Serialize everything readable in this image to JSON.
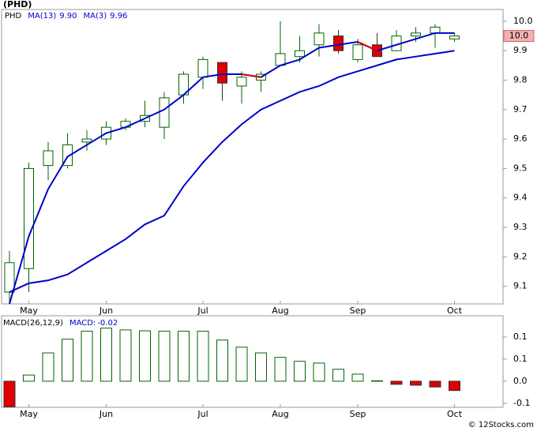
{
  "chart_data": [
    {
      "type": "candlestick",
      "title": "(PHD)",
      "ticker": "PHD",
      "ticker_color": "#006400",
      "categories": [
        null,
        "May",
        null,
        null,
        null,
        "Jun",
        null,
        null,
        null,
        null,
        "Jul",
        null,
        null,
        null,
        "Aug",
        null,
        null,
        null,
        "Sep",
        null,
        null,
        null,
        null,
        "Oct"
      ],
      "open": [
        9.08,
        9.16,
        9.51,
        9.51,
        9.59,
        9.6,
        9.64,
        9.66,
        9.64,
        9.75,
        9.81,
        9.86,
        9.78,
        9.8,
        9.85,
        9.88,
        9.92,
        9.95,
        9.87,
        9.92,
        9.9,
        9.95,
        9.96,
        9.94
      ],
      "high": [
        9.22,
        9.52,
        9.59,
        9.62,
        9.63,
        9.66,
        9.67,
        9.73,
        9.76,
        9.83,
        9.88,
        9.86,
        9.83,
        9.83,
        10.0,
        9.95,
        9.99,
        9.97,
        9.94,
        9.96,
        9.97,
        9.98,
        9.99,
        9.96
      ],
      "low": [
        9.04,
        9.08,
        9.46,
        9.5,
        9.56,
        9.58,
        9.63,
        9.64,
        9.6,
        9.72,
        9.77,
        9.73,
        9.72,
        9.76,
        9.85,
        9.86,
        9.88,
        9.89,
        9.86,
        9.88,
        9.9,
        9.93,
        9.91,
        9.93
      ],
      "close": [
        9.18,
        9.5,
        9.56,
        9.58,
        9.6,
        9.64,
        9.66,
        9.68,
        9.74,
        9.82,
        9.87,
        9.79,
        9.81,
        9.82,
        9.89,
        9.9,
        9.96,
        9.9,
        9.92,
        9.88,
        9.95,
        9.96,
        9.98,
        9.95
      ],
      "up_color": "#006400",
      "down_color": "#e00000",
      "series": [
        {
          "name": "MA(13)",
          "last": {
            "value": 9.9,
            "label": "9.90"
          },
          "color": "#0000cc",
          "values": [
            9.08,
            9.11,
            9.12,
            9.14,
            9.18,
            9.22,
            9.26,
            9.31,
            9.34,
            9.44,
            9.52,
            9.59,
            9.65,
            9.7,
            9.73,
            9.76,
            9.78,
            9.81,
            9.83,
            9.85,
            9.87,
            9.88,
            9.89,
            9.9
          ]
        },
        {
          "name": "MA(3)",
          "last": {
            "value": 9.96,
            "label": "9.96"
          },
          "color": "#0000cc",
          "falling_color": "#e00000",
          "values": [
            9.04,
            9.27,
            9.43,
            9.54,
            9.58,
            9.62,
            9.64,
            9.67,
            9.7,
            9.75,
            9.81,
            9.82,
            9.82,
            9.81,
            9.85,
            9.87,
            9.91,
            9.92,
            9.93,
            9.9,
            9.92,
            9.94,
            9.96,
            9.96
          ]
        }
      ],
      "price_tag": {
        "value": 9.95,
        "label": "10.0"
      },
      "ylim": [
        9.04,
        10.04
      ],
      "yticks": [
        {
          "value": 10.0,
          "label": "10.0"
        },
        9.9,
        9.8,
        9.7,
        9.6,
        9.5,
        9.4,
        9.3,
        9.2,
        9.1
      ]
    },
    {
      "type": "bar",
      "name": "MACD(26,12,9)",
      "last_name": "MACD:",
      "last": -0.02,
      "categories": [
        null,
        "May",
        null,
        null,
        null,
        "Jun",
        null,
        null,
        null,
        null,
        "Jul",
        null,
        null,
        null,
        "Aug",
        null,
        null,
        null,
        "Sep",
        null,
        null,
        null,
        null,
        "Oct"
      ],
      "values": [
        -0.058,
        0.014,
        0.064,
        0.095,
        0.113,
        0.12,
        0.116,
        0.114,
        0.113,
        0.113,
        0.113,
        0.093,
        0.077,
        0.064,
        0.054,
        0.045,
        0.041,
        0.027,
        0.016,
        0.001,
        -0.007,
        -0.009,
        -0.013,
        -0.021
      ],
      "up_color": "#006400",
      "down_color": "#e00000",
      "ylim": [
        -0.059,
        0.148
      ],
      "yticks": [
        0.1,
        {
          "value": 0.05,
          "label": "0.1"
        },
        {
          "value": 0,
          "label": "0.0"
        },
        {
          "value": -0.05,
          "label": "-0.1"
        }
      ]
    }
  ],
  "copyright": "© 12Stocks.com"
}
